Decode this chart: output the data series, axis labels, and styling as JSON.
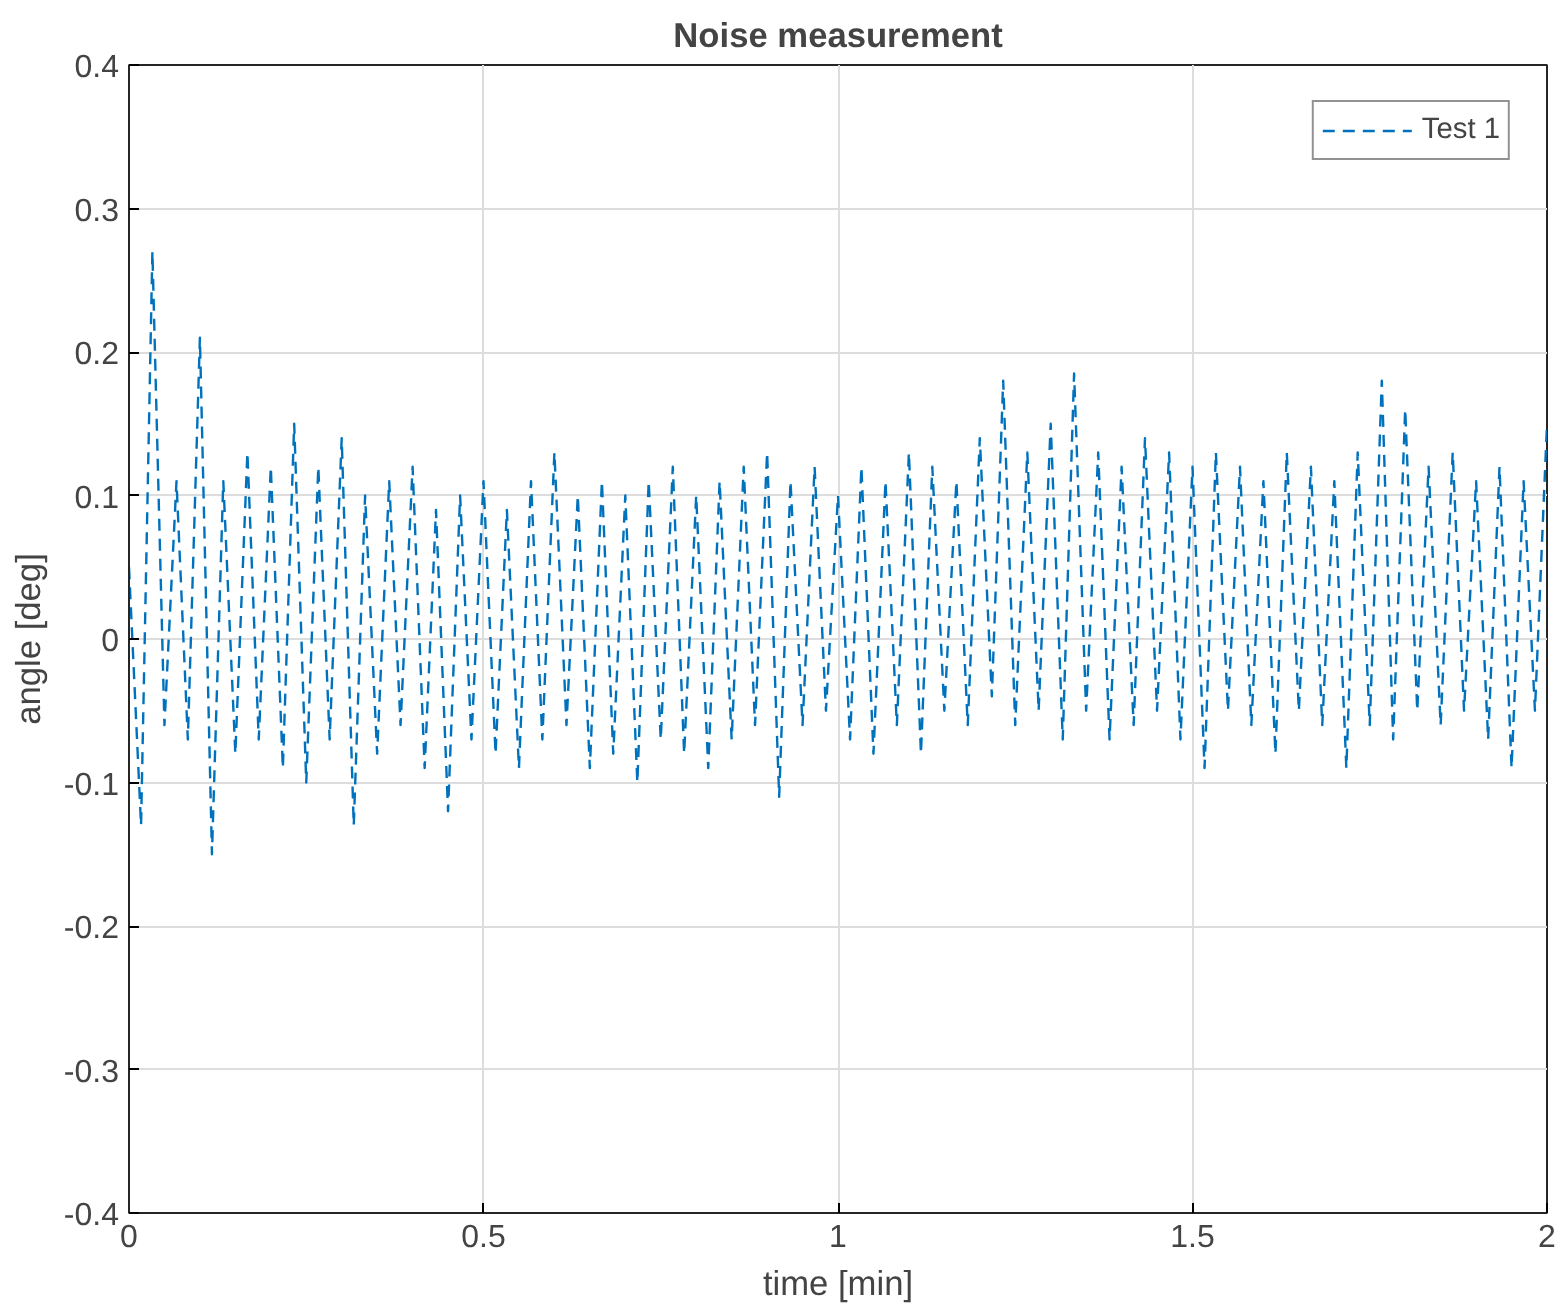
{
  "chart_data": {
    "type": "line",
    "title": "Noise measurement",
    "xlabel": "time [min]",
    "ylabel": "angle [deg]",
    "xlim": [
      0,
      2
    ],
    "ylim": [
      -0.4,
      0.4
    ],
    "xticks": [
      0,
      0.5,
      1,
      1.5,
      2
    ],
    "yticks": [
      -0.4,
      -0.3,
      -0.2,
      -0.1,
      0,
      0.1,
      0.2,
      0.3,
      0.4
    ],
    "grid": true,
    "legend": "top right",
    "line_style": "dashed",
    "marker": "none",
    "x": [
      0,
      0.017,
      0.033,
      0.05,
      0.067,
      0.083,
      0.1,
      0.117,
      0.133,
      0.15,
      0.167,
      0.183,
      0.2,
      0.217,
      0.233,
      0.25,
      0.267,
      0.283,
      0.3,
      0.317,
      0.333,
      0.35,
      0.367,
      0.383,
      0.4,
      0.417,
      0.433,
      0.45,
      0.467,
      0.483,
      0.5,
      0.517,
      0.533,
      0.55,
      0.567,
      0.583,
      0.6,
      0.617,
      0.633,
      0.65,
      0.667,
      0.683,
      0.7,
      0.717,
      0.733,
      0.75,
      0.767,
      0.783,
      0.8,
      0.817,
      0.833,
      0.85,
      0.867,
      0.883,
      0.9,
      0.917,
      0.933,
      0.95,
      0.967,
      0.983,
      1.0,
      1.017,
      1.033,
      1.05,
      1.067,
      1.083,
      1.1,
      1.117,
      1.133,
      1.15,
      1.167,
      1.183,
      1.2,
      1.217,
      1.233,
      1.25,
      1.267,
      1.283,
      1.3,
      1.317,
      1.333,
      1.35,
      1.367,
      1.383,
      1.4,
      1.417,
      1.433,
      1.45,
      1.467,
      1.483,
      1.5,
      1.517,
      1.533,
      1.55,
      1.567,
      1.583,
      1.6,
      1.617,
      1.633,
      1.65,
      1.667,
      1.683,
      1.7,
      1.717,
      1.733,
      1.75,
      1.767,
      1.783,
      1.8,
      1.817,
      1.833,
      1.85,
      1.867,
      1.883,
      1.9,
      1.917,
      1.933,
      1.95,
      1.967,
      1.983,
      2.0
    ],
    "series": [
      {
        "name": "Test 1",
        "color": "#0072bd",
        "values": [
          0.05,
          -0.13,
          0.27,
          -0.06,
          0.11,
          -0.07,
          0.21,
          -0.15,
          0.11,
          -0.08,
          0.13,
          -0.07,
          0.12,
          -0.09,
          0.15,
          -0.1,
          0.12,
          -0.07,
          0.14,
          -0.13,
          0.1,
          -0.08,
          0.11,
          -0.06,
          0.12,
          -0.09,
          0.09,
          -0.12,
          0.1,
          -0.07,
          0.11,
          -0.08,
          0.09,
          -0.09,
          0.11,
          -0.07,
          0.13,
          -0.06,
          0.1,
          -0.09,
          0.11,
          -0.08,
          0.1,
          -0.1,
          0.11,
          -0.07,
          0.12,
          -0.08,
          0.1,
          -0.09,
          0.11,
          -0.07,
          0.12,
          -0.06,
          0.13,
          -0.11,
          0.11,
          -0.06,
          0.12,
          -0.05,
          0.1,
          -0.07,
          0.12,
          -0.08,
          0.11,
          -0.06,
          0.13,
          -0.08,
          0.12,
          -0.05,
          0.11,
          -0.06,
          0.14,
          -0.04,
          0.18,
          -0.06,
          0.13,
          -0.05,
          0.15,
          -0.07,
          0.185,
          -0.05,
          0.13,
          -0.07,
          0.12,
          -0.06,
          0.14,
          -0.05,
          0.13,
          -0.07,
          0.12,
          -0.09,
          0.13,
          -0.05,
          0.12,
          -0.06,
          0.11,
          -0.08,
          0.13,
          -0.05,
          0.12,
          -0.06,
          0.11,
          -0.09,
          0.13,
          -0.06,
          0.18,
          -0.07,
          0.16,
          -0.05,
          0.12,
          -0.06,
          0.13,
          -0.05,
          0.11,
          -0.07,
          0.12,
          -0.09,
          0.11,
          -0.05,
          0.15
        ]
      }
    ]
  }
}
